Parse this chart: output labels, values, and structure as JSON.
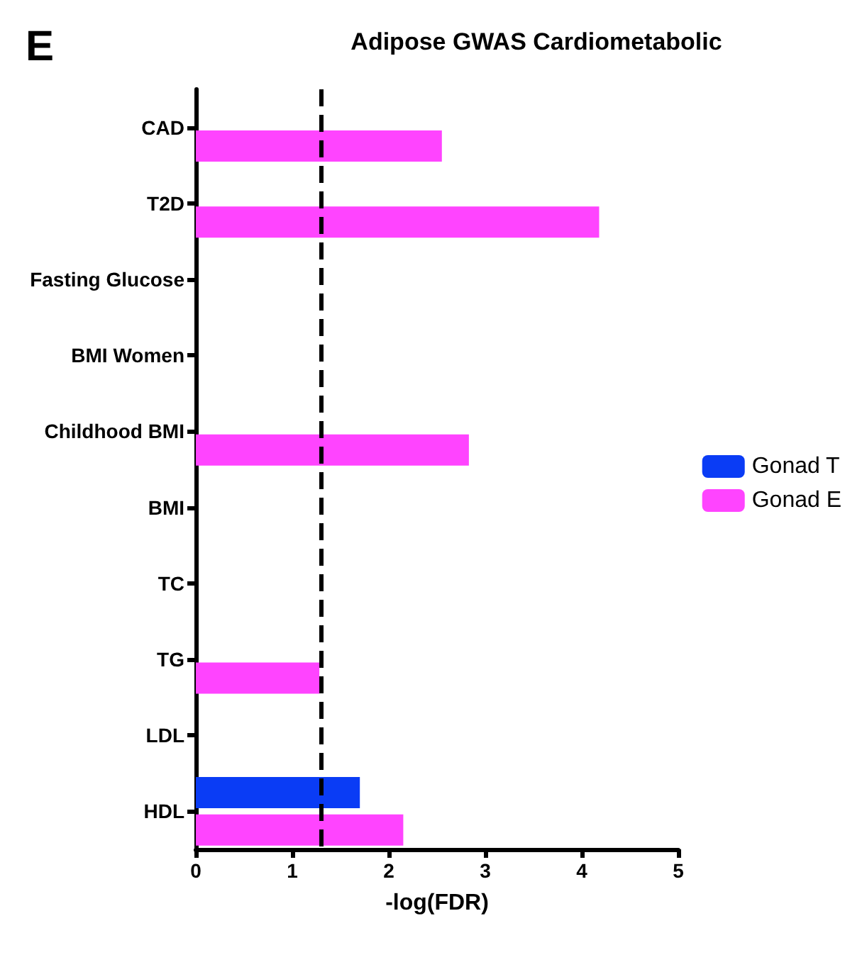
{
  "chart_data": {
    "type": "bar",
    "orientation": "horizontal",
    "title": "Adipose GWAS Cardiometabolic",
    "xlabel": "-log(FDR)",
    "categories": [
      "CAD",
      "T2D",
      "Fasting Glucose",
      "BMI Women",
      "Childhood BMI",
      "BMI",
      "TC",
      "TG",
      "LDL",
      "HDL"
    ],
    "series": [
      {
        "name": "Gonad T",
        "color": "#0a3cf5",
        "values": [
          null,
          null,
          null,
          null,
          null,
          null,
          null,
          null,
          null,
          1.7
        ]
      },
      {
        "name": "Gonad E",
        "color": "#ff44ff",
        "values": [
          2.55,
          4.18,
          null,
          null,
          2.83,
          null,
          null,
          1.28,
          null,
          2.15
        ]
      }
    ],
    "xlim": [
      0,
      5
    ],
    "xticks": [
      0,
      1,
      2,
      3,
      4,
      5
    ],
    "grid": false,
    "legend": "right",
    "ref_lines": [
      {
        "axis": "x",
        "value": 1.3,
        "color": "#000000",
        "line_style": "dashed"
      }
    ],
    "annotations": [
      "E"
    ]
  }
}
